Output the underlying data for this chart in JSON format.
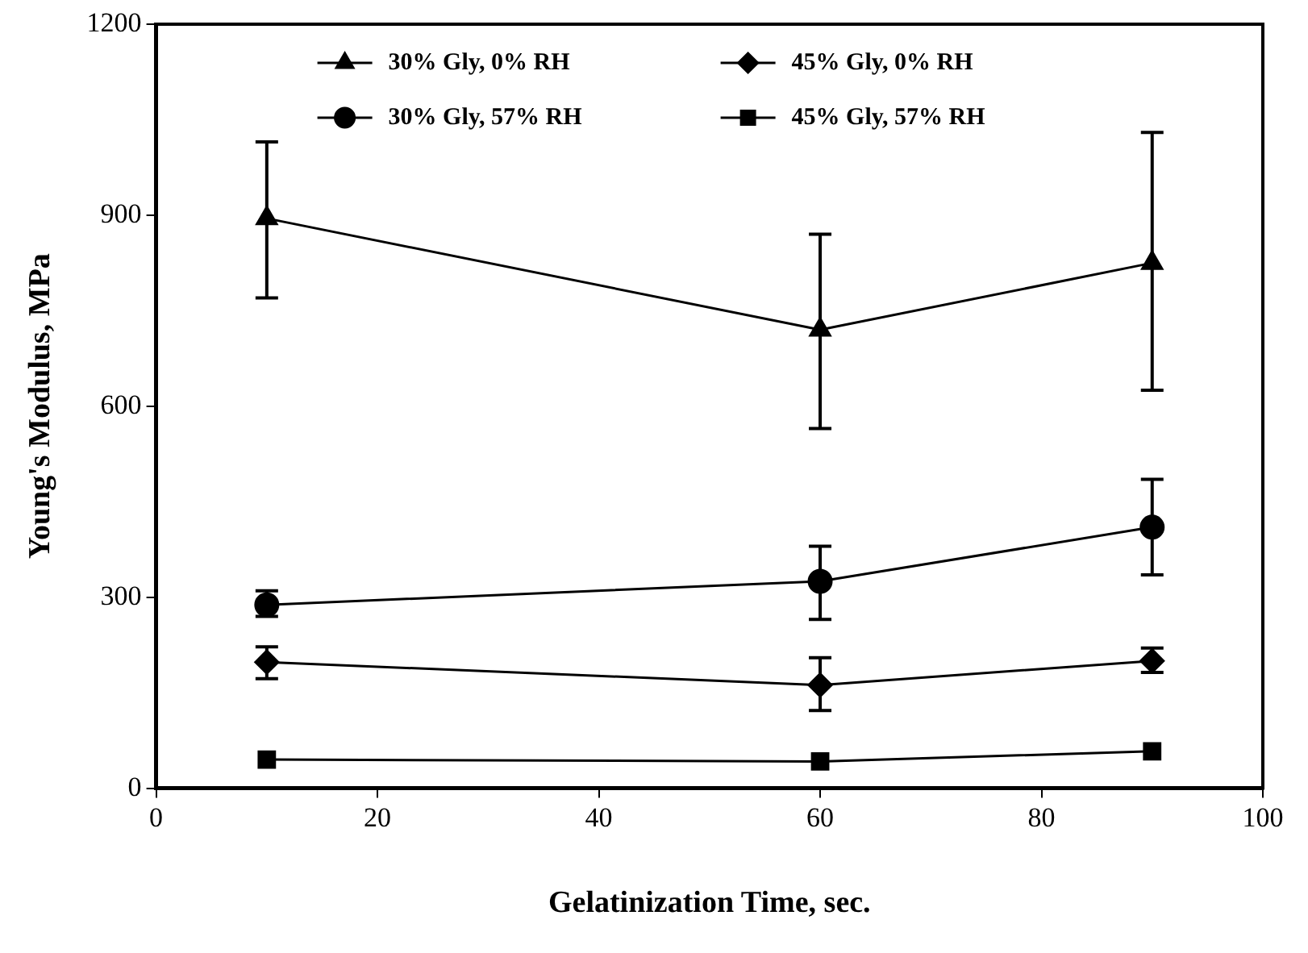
{
  "chart_data": {
    "type": "line",
    "xlabel": "Gelatinization Time, sec.",
    "ylabel": "Young's Modulus, MPa",
    "x": [
      10,
      60,
      90
    ],
    "xlim": [
      0,
      100
    ],
    "xticks": [
      0,
      20,
      40,
      60,
      80,
      100
    ],
    "ylim": [
      0,
      1200
    ],
    "yticks": [
      0,
      300,
      600,
      900,
      1200
    ],
    "grid": false,
    "legend": "top",
    "line_style": "solid",
    "series": [
      {
        "name": "30% Gly, 0% RH",
        "color": "#000000",
        "marker": "triangle",
        "values": [
          895,
          720,
          825
        ],
        "errors": [
          [
            770,
            1015
          ],
          [
            565,
            870
          ],
          [
            625,
            1030
          ]
        ]
      },
      {
        "name": "45% Gly, 0% RH",
        "color": "#000000",
        "marker": "diamond",
        "values": [
          198,
          162,
          200
        ],
        "errors": [
          [
            172,
            222
          ],
          [
            122,
            205
          ],
          [
            182,
            220
          ]
        ]
      },
      {
        "name": "30% Gly, 57% RH",
        "color": "#000000",
        "marker": "circle",
        "values": [
          288,
          325,
          410
        ],
        "errors": [
          [
            270,
            310
          ],
          [
            265,
            380
          ],
          [
            335,
            485
          ]
        ]
      },
      {
        "name": "45% Gly, 57% RH",
        "color": "#000000",
        "marker": "square",
        "values": [
          45,
          42,
          58
        ],
        "errors": [
          null,
          null,
          null
        ]
      }
    ]
  }
}
